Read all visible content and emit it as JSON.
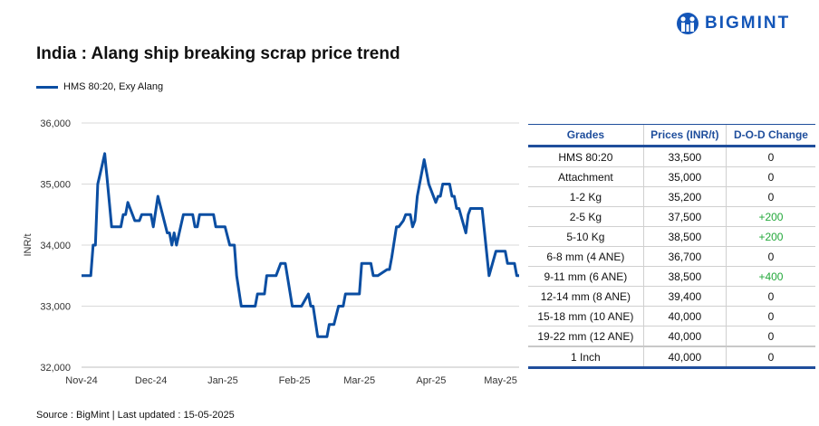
{
  "brand": {
    "logo_text": "BIGMINT"
  },
  "source": "Source : BigMint | Last updated : 15-05-2025",
  "colors": {
    "series": "#0b4ea2",
    "header": "#1f4e9c",
    "positive": "#22a83a",
    "grid": "#d9d9d9"
  },
  "chart_data": {
    "type": "line",
    "title": "India : Alang ship breaking scrap price trend",
    "ylabel": "INR/t",
    "xlabel": "",
    "ylim": [
      32000,
      36000
    ],
    "yticks": [
      "32,000",
      "33,000",
      "34,000",
      "35,000",
      "36,000"
    ],
    "ytick_values": [
      32000,
      33000,
      34000,
      35000,
      36000
    ],
    "xticks": [
      {
        "label": "Nov-24",
        "date": "2024-11-01"
      },
      {
        "label": "Dec-24",
        "date": "2024-12-01"
      },
      {
        "label": "Jan-25",
        "date": "2025-01-01"
      },
      {
        "label": "Feb-25",
        "date": "2025-02-01"
      },
      {
        "label": "Mar-25",
        "date": "2025-03-01"
      },
      {
        "label": "Apr-25",
        "date": "2025-04-01"
      },
      {
        "label": "May-25",
        "date": "2025-05-01"
      }
    ],
    "xlim": [
      "2024-11-01",
      "2025-05-09"
    ],
    "grid": true,
    "legend_position": "top-left",
    "series": [
      {
        "name": "HMS 80:20, Exy Alang",
        "points": [
          [
            "2024-11-01",
            33500
          ],
          [
            "2024-11-05",
            33500
          ],
          [
            "2024-11-06",
            34000
          ],
          [
            "2024-11-07",
            34000
          ],
          [
            "2024-11-08",
            35000
          ],
          [
            "2024-11-11",
            35500
          ],
          [
            "2024-11-13",
            34700
          ],
          [
            "2024-11-14",
            34300
          ],
          [
            "2024-11-18",
            34300
          ],
          [
            "2024-11-19",
            34500
          ],
          [
            "2024-11-20",
            34500
          ],
          [
            "2024-11-21",
            34700
          ],
          [
            "2024-11-24",
            34400
          ],
          [
            "2024-11-26",
            34400
          ],
          [
            "2024-11-27",
            34500
          ],
          [
            "2024-12-01",
            34500
          ],
          [
            "2024-12-02",
            34300
          ],
          [
            "2024-12-04",
            34800
          ],
          [
            "2024-12-08",
            34200
          ],
          [
            "2024-12-09",
            34200
          ],
          [
            "2024-12-10",
            34000
          ],
          [
            "2024-12-11",
            34200
          ],
          [
            "2024-12-12",
            34000
          ],
          [
            "2024-12-15",
            34500
          ],
          [
            "2024-12-19",
            34500
          ],
          [
            "2024-12-20",
            34300
          ],
          [
            "2024-12-21",
            34300
          ],
          [
            "2024-12-22",
            34500
          ],
          [
            "2024-12-28",
            34500
          ],
          [
            "2024-12-29",
            34300
          ],
          [
            "2025-01-02",
            34300
          ],
          [
            "2025-01-04",
            34000
          ],
          [
            "2025-01-06",
            34000
          ],
          [
            "2025-01-07",
            33500
          ],
          [
            "2025-01-09",
            33000
          ],
          [
            "2025-01-15",
            33000
          ],
          [
            "2025-01-16",
            33200
          ],
          [
            "2025-01-19",
            33200
          ],
          [
            "2025-01-20",
            33500
          ],
          [
            "2025-01-24",
            33500
          ],
          [
            "2025-01-26",
            33700
          ],
          [
            "2025-01-28",
            33700
          ],
          [
            "2025-01-31",
            33000
          ],
          [
            "2025-02-02",
            33000
          ],
          [
            "2025-02-04",
            33000
          ],
          [
            "2025-02-07",
            33200
          ],
          [
            "2025-02-08",
            33000
          ],
          [
            "2025-02-09",
            33000
          ],
          [
            "2025-02-11",
            32500
          ],
          [
            "2025-02-15",
            32500
          ],
          [
            "2025-02-16",
            32700
          ],
          [
            "2025-02-18",
            32700
          ],
          [
            "2025-02-20",
            33000
          ],
          [
            "2025-02-22",
            33000
          ],
          [
            "2025-02-23",
            33200
          ],
          [
            "2025-03-01",
            33200
          ],
          [
            "2025-03-02",
            33700
          ],
          [
            "2025-03-06",
            33700
          ],
          [
            "2025-03-07",
            33500
          ],
          [
            "2025-03-09",
            33500
          ],
          [
            "2025-03-13",
            33600
          ],
          [
            "2025-03-14",
            33600
          ],
          [
            "2025-03-15",
            33800
          ],
          [
            "2025-03-17",
            34300
          ],
          [
            "2025-03-18",
            34300
          ],
          [
            "2025-03-20",
            34400
          ],
          [
            "2025-03-21",
            34500
          ],
          [
            "2025-03-23",
            34500
          ],
          [
            "2025-03-24",
            34300
          ],
          [
            "2025-03-25",
            34400
          ],
          [
            "2025-03-26",
            34800
          ],
          [
            "2025-03-28",
            35200
          ],
          [
            "2025-03-29",
            35400
          ],
          [
            "2025-03-31",
            35000
          ],
          [
            "2025-04-03",
            34700
          ],
          [
            "2025-04-04",
            34800
          ],
          [
            "2025-04-05",
            34800
          ],
          [
            "2025-04-06",
            35000
          ],
          [
            "2025-04-09",
            35000
          ],
          [
            "2025-04-10",
            34800
          ],
          [
            "2025-04-11",
            34800
          ],
          [
            "2025-04-12",
            34600
          ],
          [
            "2025-04-13",
            34600
          ],
          [
            "2025-04-16",
            34200
          ],
          [
            "2025-04-17",
            34500
          ],
          [
            "2025-04-18",
            34600
          ],
          [
            "2025-04-19",
            34600
          ],
          [
            "2025-04-22",
            34600
          ],
          [
            "2025-04-23",
            34600
          ],
          [
            "2025-04-26",
            33500
          ],
          [
            "2025-04-29",
            33900
          ],
          [
            "2025-05-03",
            33900
          ],
          [
            "2025-05-04",
            33700
          ],
          [
            "2025-05-07",
            33700
          ],
          [
            "2025-05-08",
            33500
          ],
          [
            "2025-05-09",
            33500
          ]
        ]
      }
    ]
  },
  "table": {
    "headers": [
      "Grades",
      "Prices (INR/t)",
      "D-O-D Change"
    ],
    "rows": [
      [
        "HMS 80:20",
        "33,500",
        "0"
      ],
      [
        "Attachment",
        "35,000",
        "0"
      ],
      [
        "1-2 Kg",
        "35,200",
        "0"
      ],
      [
        "2-5 Kg",
        "37,500",
        "+200"
      ],
      [
        "5-10 Kg",
        "38,500",
        "+200"
      ],
      [
        "6-8 mm (4 ANE)",
        "36,700",
        "0"
      ],
      [
        "9-11 mm (6 ANE)",
        "38,500",
        "+400"
      ],
      [
        "12-14 mm (8 ANE)",
        "39,400",
        "0"
      ],
      [
        "15-18 mm (10 ANE)",
        "40,000",
        "0"
      ],
      [
        "19-22 mm (12 ANE)",
        "40,000",
        "0"
      ],
      [
        "1 Inch",
        "40,000",
        "0"
      ]
    ]
  }
}
